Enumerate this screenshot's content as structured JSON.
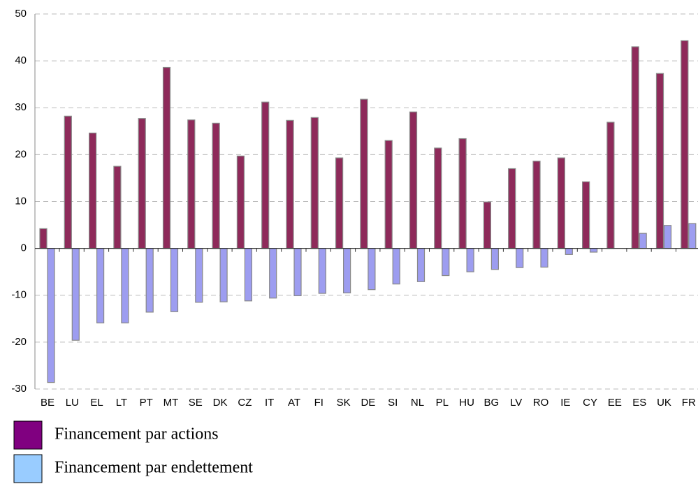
{
  "chart_data": {
    "type": "bar",
    "categories": [
      "BE",
      "LU",
      "EL",
      "LT",
      "PT",
      "MT",
      "SE",
      "DK",
      "CZ",
      "IT",
      "AT",
      "FI",
      "SK",
      "DE",
      "SI",
      "NL",
      "PL",
      "HU",
      "BG",
      "LV",
      "RO",
      "IE",
      "CY",
      "EE",
      "ES",
      "UK",
      "FR"
    ],
    "series": [
      {
        "name": "Financement par actions",
        "color": "#8e2a5a",
        "legend_color": "#800080",
        "values": [
          4.2,
          28.2,
          24.6,
          17.5,
          27.7,
          38.6,
          27.4,
          26.7,
          19.7,
          31.2,
          27.3,
          27.9,
          19.3,
          31.8,
          23,
          29.1,
          21.4,
          23.4,
          9.9,
          17,
          18.6,
          19.3,
          14.2,
          26.9,
          43,
          37.3,
          44.3
        ]
      },
      {
        "name": "Financement par endettement",
        "color": "#9d9df0",
        "legend_color": "#99ccff",
        "values": [
          -28.6,
          -19.6,
          -15.9,
          -15.9,
          -13.6,
          -13.5,
          -11.5,
          -11.4,
          -11.2,
          -10.6,
          -10.1,
          -9.6,
          -9.5,
          -8.8,
          -7.6,
          -7.1,
          -5.8,
          -5,
          -4.5,
          -4.1,
          -4,
          -1.3,
          -0.8,
          0,
          3.2,
          4.9,
          5.3
        ]
      }
    ],
    "ylim": [
      -30,
      50
    ],
    "yticks": [
      -30,
      -20,
      -10,
      0,
      10,
      20,
      30,
      40,
      50
    ],
    "grid": true
  }
}
